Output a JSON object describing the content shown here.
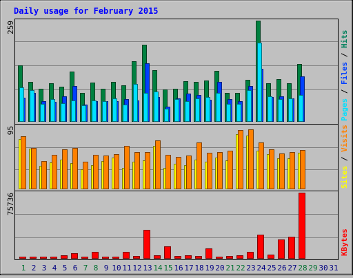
{
  "chart_data": [
    {
      "type": "bar",
      "title": "Daily usage for February 2015",
      "ymax_label": "259",
      "ylim": [
        0,
        259
      ],
      "legend": [
        "Pages",
        "Files",
        "Hits"
      ],
      "categories": [
        "1",
        "2",
        "3",
        "4",
        "5",
        "6",
        "7",
        "8",
        "9",
        "10",
        "11",
        "12",
        "13",
        "14",
        "15",
        "16",
        "17",
        "18",
        "19",
        "20",
        "21",
        "22",
        "23",
        "24",
        "25",
        "26",
        "27",
        "28",
        "29",
        "30",
        "31"
      ],
      "series": [
        {
          "name": "Hits",
          "values": [
            143,
            102,
            83,
            97,
            88,
            127,
            72,
            99,
            84,
            101,
            93,
            155,
            197,
            131,
            81,
            84,
            103,
            101,
            105,
            129,
            72,
            72,
            107,
            259,
            97,
            109,
            97,
            147,
            0,
            0,
            0
          ]
        },
        {
          "name": "Files",
          "values": [
            61,
            73,
            51,
            49,
            63,
            91,
            43,
            51,
            52,
            52,
            56,
            54,
            149,
            62,
            37,
            59,
            71,
            67,
            55,
            102,
            56,
            52,
            91,
            135,
            62,
            64,
            59,
            116,
            0,
            0,
            0
          ]
        },
        {
          "name": "Pages",
          "values": [
            87,
            80,
            45,
            57,
            47,
            54,
            41,
            54,
            51,
            59,
            42,
            95,
            72,
            77,
            32,
            57,
            52,
            59,
            62,
            73,
            44,
            44,
            79,
            202,
            64,
            57,
            58,
            68,
            0,
            0,
            0
          ]
        }
      ]
    },
    {
      "type": "bar",
      "ymax_label": "95",
      "ylim": [
        0,
        95
      ],
      "legend": [
        "Sites",
        "Visits"
      ],
      "categories": [
        "1",
        "2",
        "3",
        "4",
        "5",
        "6",
        "7",
        "8",
        "9",
        "10",
        "11",
        "12",
        "13",
        "14",
        "15",
        "16",
        "17",
        "18",
        "19",
        "20",
        "21",
        "22",
        "23",
        "24",
        "25",
        "26",
        "27",
        "28",
        "29",
        "30",
        "31"
      ],
      "series": [
        {
          "name": "Visits",
          "values": [
            79,
            62,
            42,
            51,
            59,
            62,
            41,
            51,
            50,
            52,
            65,
            55,
            55,
            73,
            51,
            48,
            50,
            70,
            54,
            55,
            57,
            89,
            90,
            70,
            59,
            53,
            55,
            58,
            0,
            0,
            0
          ]
        },
        {
          "name": "Sites",
          "values": [
            75,
            61,
            34,
            40,
            44,
            39,
            29,
            35,
            42,
            47,
            31,
            41,
            43,
            65,
            31,
            38,
            35,
            44,
            41,
            47,
            43,
            82,
            80,
            57,
            52,
            46,
            46,
            54,
            0,
            0,
            0
          ]
        }
      ]
    },
    {
      "type": "bar",
      "ymax_label": "75736",
      "ylim": [
        0,
        75736
      ],
      "legend": [
        "KBytes"
      ],
      "categories": [
        "1",
        "2",
        "3",
        "4",
        "5",
        "6",
        "7",
        "8",
        "9",
        "10",
        "11",
        "12",
        "13",
        "14",
        "15",
        "16",
        "17",
        "18",
        "19",
        "20",
        "21",
        "22",
        "23",
        "24",
        "25",
        "26",
        "27",
        "28",
        "29",
        "30",
        "31"
      ],
      "series": [
        {
          "name": "KBytes",
          "values": [
            1200,
            900,
            1200,
            1300,
            3500,
            5800,
            1200,
            6800,
            1700,
            1700,
            6900,
            2000,
            32700,
            3100,
            13600,
            2000,
            3500,
            2000,
            11300,
            1500,
            2400,
            2900,
            7100,
            26800,
            3600,
            21700,
            24500,
            75736,
            0,
            0,
            0
          ]
        }
      ]
    }
  ],
  "x_label_colors": {
    "weekend": "#007030",
    "weekday": "#000080"
  },
  "weekend_days": [
    1,
    7,
    8,
    14,
    15,
    21,
    22,
    28,
    29
  ],
  "colors": {
    "hits_fill": "#008040",
    "hits_stroke": "#004020",
    "files_fill": "#0040ff",
    "files_stroke": "#002080",
    "pages_fill": "#00e0ff",
    "pages_stroke": "#007080",
    "visits_fill": "#ff8000",
    "visits_stroke": "#804000",
    "sites_fill": "#ffff00",
    "sites_stroke": "#808000",
    "kbytes_fill": "#ff0000",
    "kbytes_stroke": "#800000",
    "legend_hits": "#00805c",
    "legend_files": "#0040ff",
    "legend_pages": "#00e0ff",
    "legend_visits": "#ffff00",
    "legend_sites": "#ff8000",
    "legend_kbytes": "#ff0000",
    "title": "#0000ff"
  }
}
